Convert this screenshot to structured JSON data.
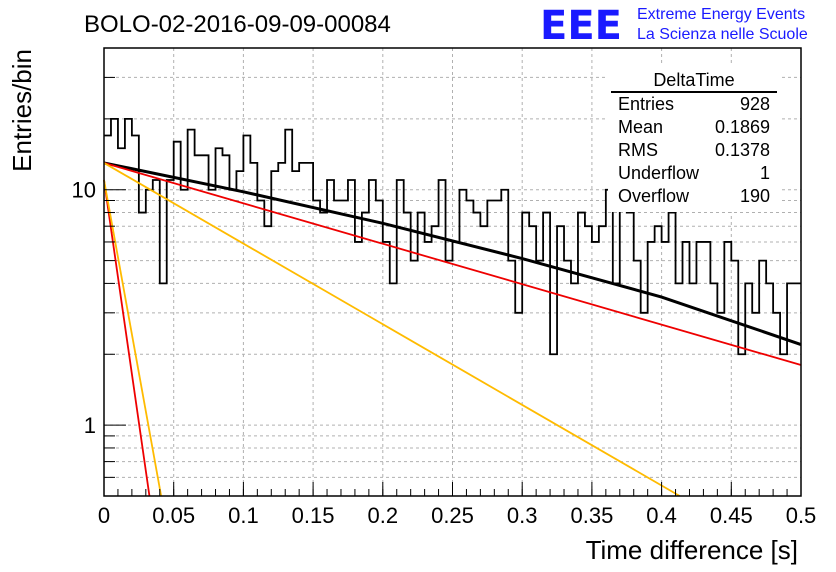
{
  "header": {
    "title": "BOLO-02-2016-09-09-00084",
    "logo_text": "EEE",
    "logo_line1": "Extreme Energy Events",
    "logo_line2": "La Scienza nelle Scuole",
    "logo_color": "#1a1aff"
  },
  "stats_box": {
    "name": "DeltaTime",
    "rows": [
      {
        "label": "Entries",
        "value": "928"
      },
      {
        "label": "Mean",
        "value": "0.1869"
      },
      {
        "label": "RMS",
        "value": "0.1378"
      },
      {
        "label": "Underflow",
        "value": "1"
      },
      {
        "label": "Overflow",
        "value": "190"
      }
    ]
  },
  "chart_data": {
    "type": "line",
    "xlabel": "Time difference [s]",
    "ylabel": "Entries/bin",
    "xlim": [
      0,
      0.5
    ],
    "ylim": [
      0.5,
      40
    ],
    "y_scale": "log",
    "grid": true,
    "x_ticks": [
      "0",
      "0.05",
      "0.1",
      "0.15",
      "0.2",
      "0.25",
      "0.3",
      "0.35",
      "0.4",
      "0.45",
      "0.5"
    ],
    "y_ticks": [
      "1",
      "10"
    ],
    "histogram": {
      "bin_width": 0.005,
      "counts": [
        17,
        20,
        15,
        20,
        17,
        8,
        10,
        11,
        4,
        11,
        16,
        10,
        18,
        14,
        14,
        10,
        15,
        14,
        10,
        12,
        17,
        13,
        9,
        7,
        12,
        13,
        18,
        12,
        13,
        13,
        9,
        8,
        11,
        9,
        9,
        11,
        6,
        8,
        11,
        9,
        6,
        4,
        11,
        8,
        5,
        8,
        6,
        7,
        11,
        5,
        6,
        10,
        9,
        8,
        7,
        9,
        9,
        10,
        5,
        3,
        8,
        7,
        5,
        8,
        2,
        7,
        5,
        4,
        8,
        7,
        6,
        7,
        10,
        4,
        9,
        8,
        5,
        3,
        6,
        7,
        6,
        8,
        4,
        6,
        4,
        6,
        6,
        4,
        3,
        6,
        5,
        2,
        4,
        3,
        5,
        4,
        3,
        2,
        4,
        4
      ],
      "color": "#000000"
    },
    "series": [
      {
        "kind": "total",
        "color": "#000000",
        "x": [
          0,
          0.1,
          0.2,
          0.3,
          0.4,
          0.5
        ],
        "y": [
          13.0,
          9.8,
          7.2,
          5.1,
          3.5,
          2.2
        ]
      },
      {
        "kind": "exponential",
        "color": "#ee0000",
        "x": [
          0,
          0.5
        ],
        "y": [
          13.0,
          1.8
        ]
      },
      {
        "kind": "exponential",
        "color": "#ee0000",
        "x": [
          0,
          0.0326
        ],
        "y": [
          11.0,
          0.5
        ]
      },
      {
        "kind": "exponential",
        "color": "#ffbb00",
        "x": [
          0,
          0.413
        ],
        "y": [
          13.0,
          0.5
        ]
      },
      {
        "kind": "exponential",
        "color": "#ffbb00",
        "x": [
          0,
          0.041
        ],
        "y": [
          11.0,
          0.5
        ]
      }
    ]
  }
}
